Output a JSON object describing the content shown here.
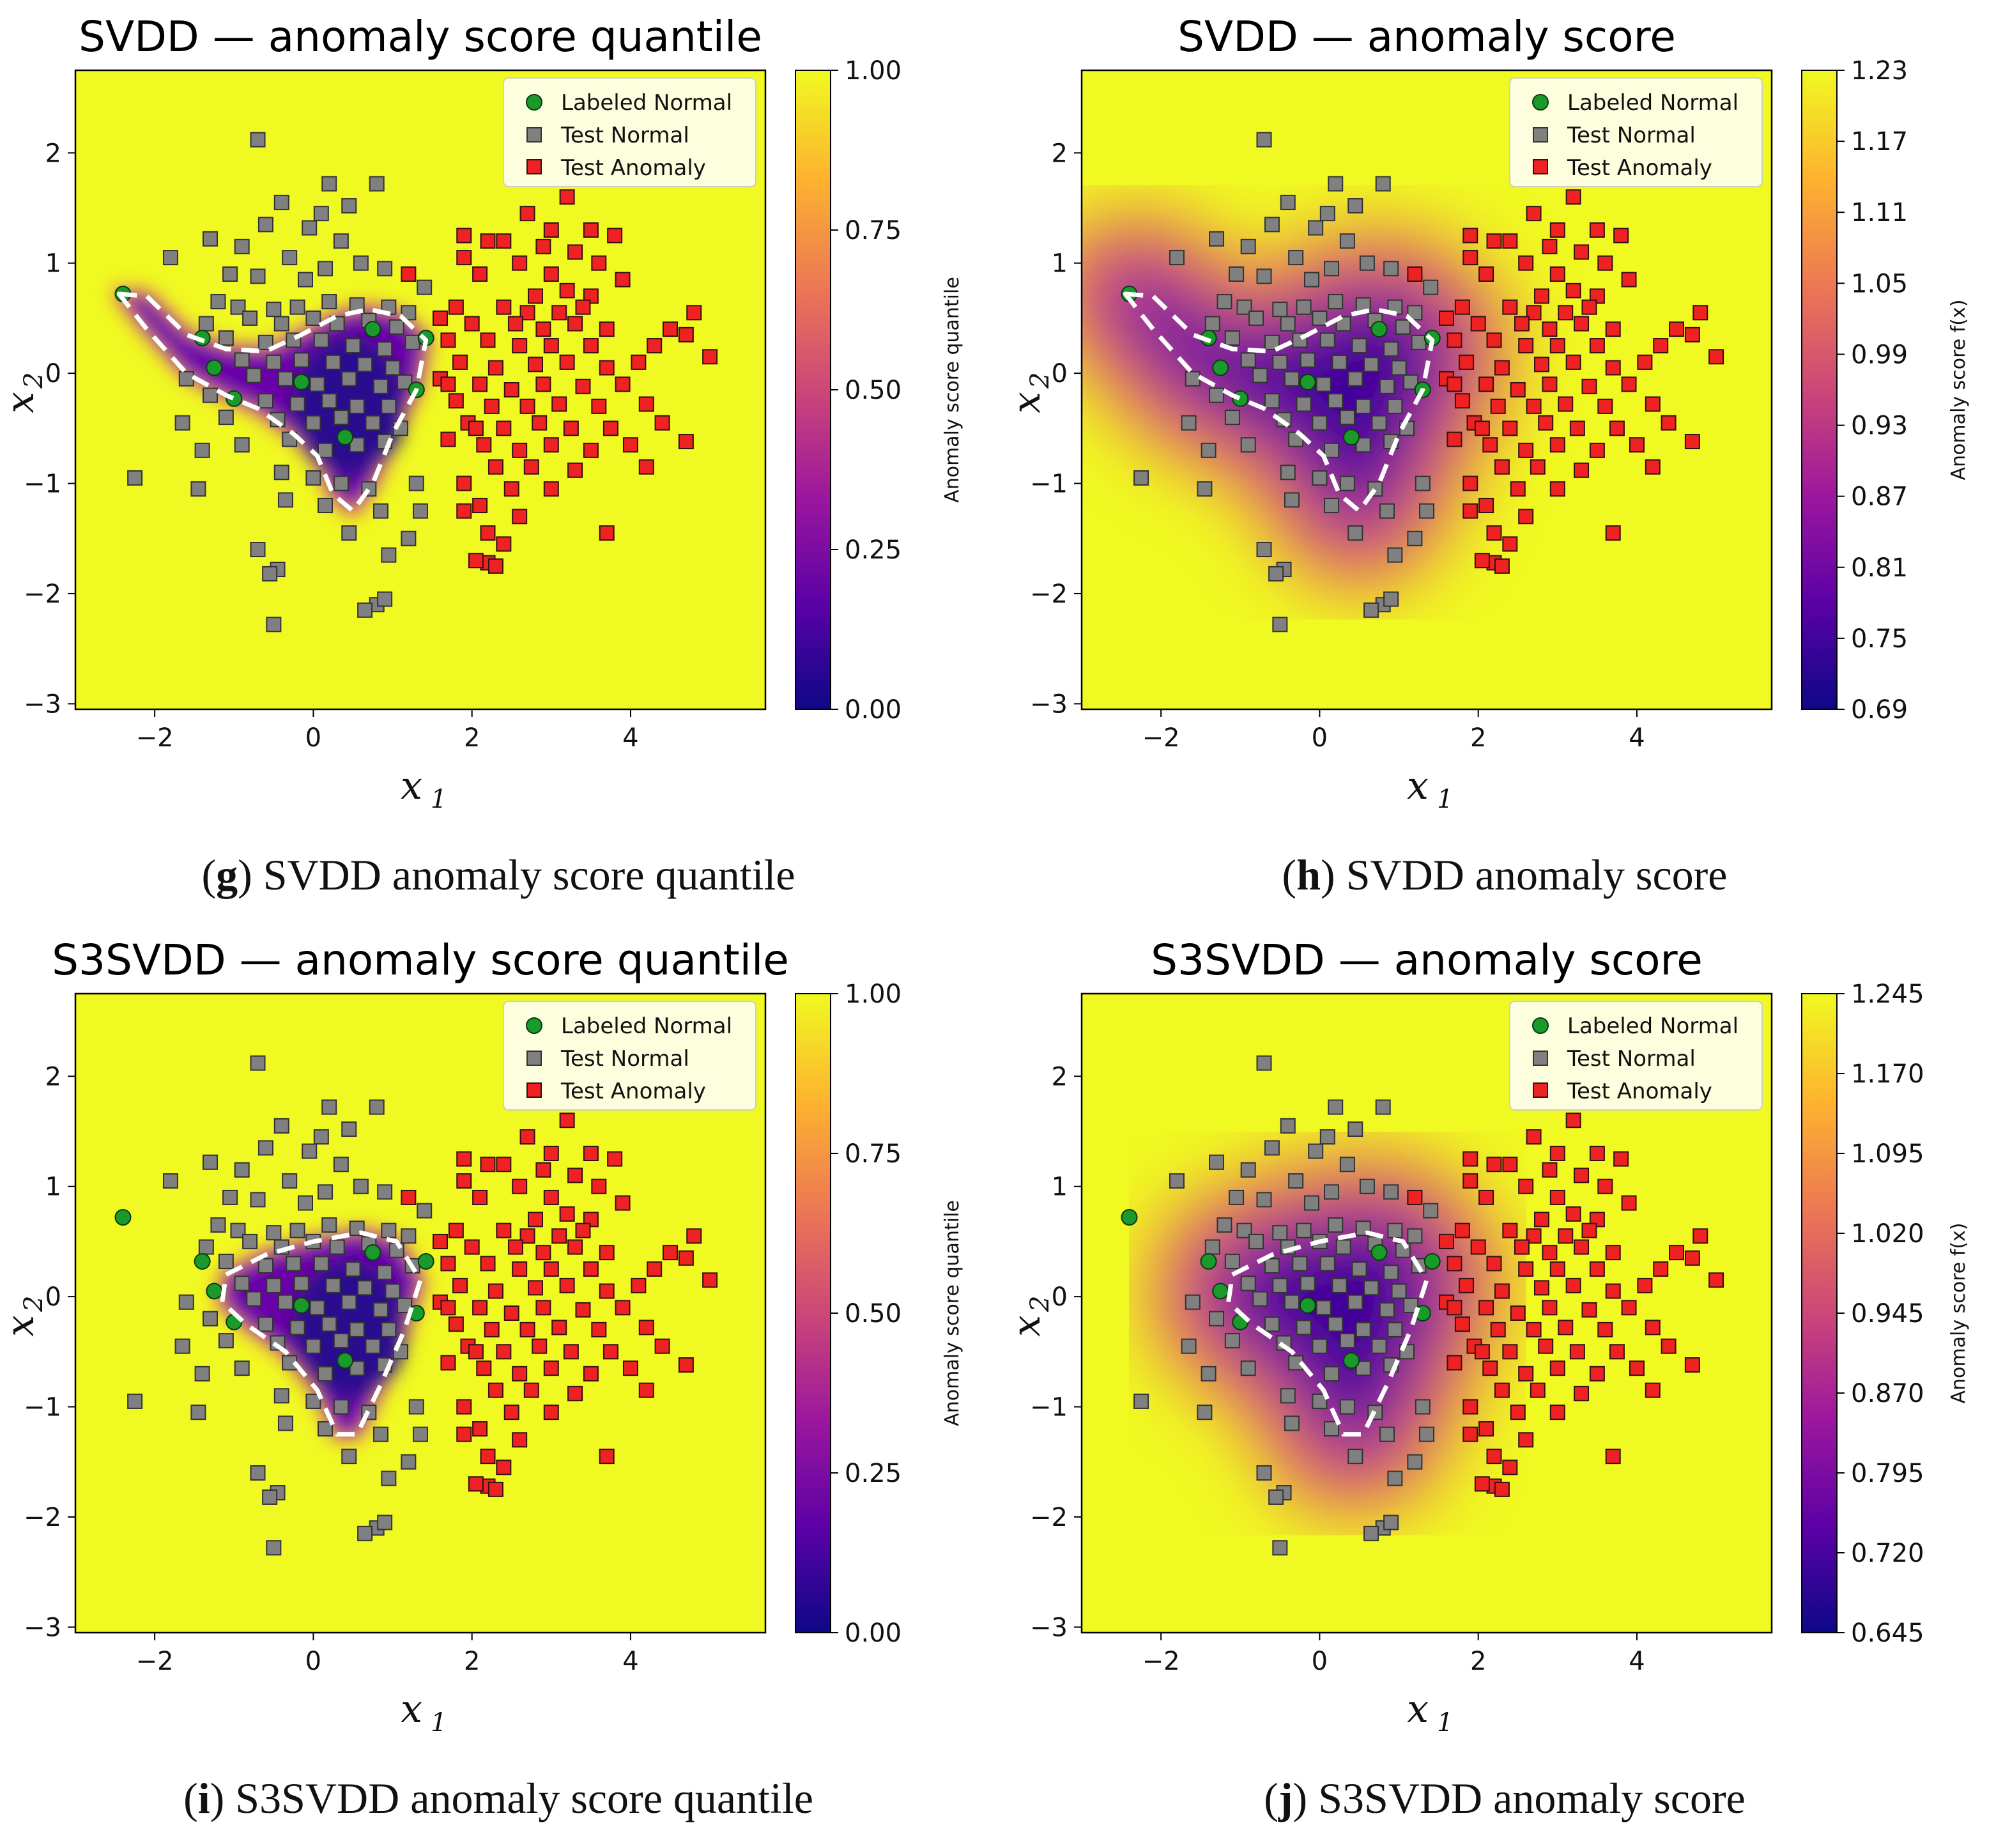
{
  "colors": {
    "background_high": "#f0f921",
    "labeled_normal": "#1a9a2a",
    "test_normal": "#808080",
    "test_anomaly": "#ee2222",
    "boundary": "#ffffff",
    "colormap": [
      "#0d0887",
      "#5c01a6",
      "#9c179e",
      "#cc4778",
      "#ed7953",
      "#fdb42f",
      "#f0f921"
    ]
  },
  "panels": [
    {
      "id": "g",
      "caption_letter": "g",
      "caption_text": " SVDD anomaly score quantile",
      "chart_data": {
        "type": "scatter",
        "title": "SVDD — anomaly score quantile",
        "xlabel": "x",
        "xlabel_sub": "1",
        "ylabel": "x",
        "ylabel_sub": "2",
        "xlim": [
          -3,
          5.7
        ],
        "ylim": [
          -3.05,
          2.75
        ],
        "xticks": [
          {
            "v": -2,
            "t": "−2"
          },
          {
            "v": 0,
            "t": "0"
          },
          {
            "v": 2,
            "t": "2"
          },
          {
            "v": 4,
            "t": "4"
          }
        ],
        "yticks": [
          {
            "v": -3,
            "t": "−3"
          },
          {
            "v": -2,
            "t": "−2"
          },
          {
            "v": -1,
            "t": "−1"
          },
          {
            "v": 0,
            "t": "0"
          },
          {
            "v": 1,
            "t": "1"
          },
          {
            "v": 2,
            "t": "2"
          }
        ],
        "colorbar_label": "Anomaly score quantile",
        "colorbar_ticks": [
          "0.00",
          "0.25",
          "0.50",
          "0.75",
          "1.00"
        ],
        "legend": [
          "Labeled Normal",
          "Test Normal",
          "Test Anomaly"
        ],
        "map": "quantile",
        "model": "svdd"
      }
    },
    {
      "id": "h",
      "caption_letter": "h",
      "caption_text": " SVDD anomaly score",
      "chart_data": {
        "type": "scatter",
        "title": "SVDD — anomaly score",
        "xlabel": "x",
        "xlabel_sub": "1",
        "ylabel": "x",
        "ylabel_sub": "2",
        "xlim": [
          -3,
          5.7
        ],
        "ylim": [
          -3.05,
          2.75
        ],
        "xticks": [
          {
            "v": -2,
            "t": "−2"
          },
          {
            "v": 0,
            "t": "0"
          },
          {
            "v": 2,
            "t": "2"
          },
          {
            "v": 4,
            "t": "4"
          }
        ],
        "yticks": [
          {
            "v": -3,
            "t": "−3"
          },
          {
            "v": -2,
            "t": "−2"
          },
          {
            "v": -1,
            "t": "−1"
          },
          {
            "v": 0,
            "t": "0"
          },
          {
            "v": 1,
            "t": "1"
          },
          {
            "v": 2,
            "t": "2"
          }
        ],
        "colorbar_label": "Anomaly score f(x)",
        "colorbar_ticks": [
          "0.69",
          "0.75",
          "0.81",
          "0.87",
          "0.93",
          "0.99",
          "1.05",
          "1.11",
          "1.17",
          "1.23"
        ],
        "legend": [
          "Labeled Normal",
          "Test Normal",
          "Test Anomaly"
        ],
        "map": "score",
        "model": "svdd"
      }
    },
    {
      "id": "i",
      "caption_letter": "i",
      "caption_text": " S3SVDD anomaly score quantile",
      "chart_data": {
        "type": "scatter",
        "title": "S3SVDD — anomaly score quantile",
        "xlabel": "x",
        "xlabel_sub": "1",
        "ylabel": "x",
        "ylabel_sub": "2",
        "xlim": [
          -3,
          5.7
        ],
        "ylim": [
          -3.05,
          2.75
        ],
        "xticks": [
          {
            "v": -2,
            "t": "−2"
          },
          {
            "v": 0,
            "t": "0"
          },
          {
            "v": 2,
            "t": "2"
          },
          {
            "v": 4,
            "t": "4"
          }
        ],
        "yticks": [
          {
            "v": -3,
            "t": "−3"
          },
          {
            "v": -2,
            "t": "−2"
          },
          {
            "v": -1,
            "t": "−1"
          },
          {
            "v": 0,
            "t": "0"
          },
          {
            "v": 1,
            "t": "1"
          },
          {
            "v": 2,
            "t": "2"
          }
        ],
        "colorbar_label": "Anomaly score quantile",
        "colorbar_ticks": [
          "0.00",
          "0.25",
          "0.50",
          "0.75",
          "1.00"
        ],
        "legend": [
          "Labeled Normal",
          "Test Normal",
          "Test Anomaly"
        ],
        "map": "quantile",
        "model": "s3svdd"
      }
    },
    {
      "id": "j",
      "caption_letter": "j",
      "caption_text": " S3SVDD anomaly score",
      "chart_data": {
        "type": "scatter",
        "title": "S3SVDD — anomaly score",
        "xlabel": "x",
        "xlabel_sub": "1",
        "ylabel": "x",
        "ylabel_sub": "2",
        "xlim": [
          -3,
          5.7
        ],
        "ylim": [
          -3.05,
          2.75
        ],
        "xticks": [
          {
            "v": -2,
            "t": "−2"
          },
          {
            "v": 0,
            "t": "0"
          },
          {
            "v": 2,
            "t": "2"
          },
          {
            "v": 4,
            "t": "4"
          }
        ],
        "yticks": [
          {
            "v": -3,
            "t": "−3"
          },
          {
            "v": -2,
            "t": "−2"
          },
          {
            "v": -1,
            "t": "−1"
          },
          {
            "v": 0,
            "t": "0"
          },
          {
            "v": 1,
            "t": "1"
          },
          {
            "v": 2,
            "t": "2"
          }
        ],
        "colorbar_label": "Anomaly score f(x)",
        "colorbar_ticks": [
          "0.645",
          "0.720",
          "0.795",
          "0.870",
          "0.945",
          "1.020",
          "1.095",
          "1.170",
          "1.245"
        ],
        "legend": [
          "Labeled Normal",
          "Test Normal",
          "Test Anomaly"
        ],
        "map": "score",
        "model": "s3svdd"
      }
    }
  ],
  "data_points": {
    "labeled_normal": [
      [
        -2.4,
        0.72
      ],
      [
        -1.4,
        0.32
      ],
      [
        -1.25,
        0.05
      ],
      [
        -1.0,
        -0.23
      ],
      [
        -0.15,
        -0.08
      ],
      [
        0.4,
        -0.58
      ],
      [
        0.75,
        0.4
      ],
      [
        1.3,
        -0.15
      ],
      [
        1.42,
        0.32
      ]
    ],
    "test_normal": [
      [
        -0.7,
        2.12
      ],
      [
        0.2,
        1.72
      ],
      [
        0.8,
        1.72
      ],
      [
        -0.4,
        1.55
      ],
      [
        0.1,
        1.45
      ],
      [
        0.45,
        1.52
      ],
      [
        -0.6,
        1.35
      ],
      [
        -0.05,
        1.32
      ],
      [
        0.35,
        1.2
      ],
      [
        -1.3,
        1.22
      ],
      [
        -0.9,
        1.15
      ],
      [
        -1.8,
        1.05
      ],
      [
        -0.3,
        1.05
      ],
      [
        0.6,
        1.0
      ],
      [
        -1.05,
        0.9
      ],
      [
        0.15,
        0.95
      ],
      [
        -0.7,
        0.88
      ],
      [
        -0.1,
        0.85
      ],
      [
        0.9,
        0.95
      ],
      [
        1.4,
        0.78
      ],
      [
        -1.2,
        0.65
      ],
      [
        -0.95,
        0.6
      ],
      [
        -0.5,
        0.58
      ],
      [
        -0.2,
        0.6
      ],
      [
        0.2,
        0.65
      ],
      [
        0.55,
        0.62
      ],
      [
        0.95,
        0.6
      ],
      [
        1.2,
        0.55
      ],
      [
        -1.35,
        0.45
      ],
      [
        -0.8,
        0.5
      ],
      [
        -0.4,
        0.45
      ],
      [
        0.0,
        0.5
      ],
      [
        0.3,
        0.45
      ],
      [
        0.7,
        0.48
      ],
      [
        1.05,
        0.42
      ],
      [
        -1.1,
        0.32
      ],
      [
        -0.6,
        0.28
      ],
      [
        -0.25,
        0.3
      ],
      [
        0.1,
        0.3
      ],
      [
        0.5,
        0.25
      ],
      [
        0.9,
        0.22
      ],
      [
        1.25,
        0.28
      ],
      [
        -0.9,
        0.12
      ],
      [
        -0.5,
        0.1
      ],
      [
        -0.15,
        0.12
      ],
      [
        0.25,
        0.1
      ],
      [
        0.65,
        0.08
      ],
      [
        1.0,
        0.05
      ],
      [
        -1.6,
        -0.05
      ],
      [
        -0.75,
        -0.02
      ],
      [
        -0.35,
        -0.05
      ],
      [
        0.05,
        -0.1
      ],
      [
        0.45,
        -0.05
      ],
      [
        0.85,
        -0.12
      ],
      [
        1.15,
        -0.08
      ],
      [
        -1.3,
        -0.2
      ],
      [
        -0.6,
        -0.25
      ],
      [
        -0.2,
        -0.28
      ],
      [
        0.2,
        -0.25
      ],
      [
        0.55,
        -0.3
      ],
      [
        0.95,
        -0.3
      ],
      [
        -1.65,
        -0.45
      ],
      [
        -1.1,
        -0.4
      ],
      [
        -0.45,
        -0.42
      ],
      [
        0.0,
        -0.45
      ],
      [
        0.35,
        -0.4
      ],
      [
        0.75,
        -0.45
      ],
      [
        1.1,
        -0.5
      ],
      [
        -1.4,
        -0.7
      ],
      [
        -0.9,
        -0.65
      ],
      [
        -0.3,
        -0.6
      ],
      [
        0.15,
        -0.7
      ],
      [
        0.55,
        -0.65
      ],
      [
        0.9,
        -0.62
      ],
      [
        -2.25,
        -0.95
      ],
      [
        -1.45,
        -1.05
      ],
      [
        -0.4,
        -0.9
      ],
      [
        0.0,
        -0.95
      ],
      [
        0.35,
        -1.0
      ],
      [
        0.7,
        -1.05
      ],
      [
        1.3,
        -1.0
      ],
      [
        -0.35,
        -1.15
      ],
      [
        0.15,
        -1.2
      ],
      [
        0.85,
        -1.25
      ],
      [
        1.35,
        -1.25
      ],
      [
        0.45,
        -1.45
      ],
      [
        -0.7,
        -1.6
      ],
      [
        -0.45,
        -1.78
      ],
      [
        -0.55,
        -1.82
      ],
      [
        0.95,
        -1.65
      ],
      [
        1.2,
        -1.5
      ],
      [
        0.8,
        -2.1
      ],
      [
        0.65,
        -2.15
      ],
      [
        0.9,
        -2.05
      ],
      [
        -0.5,
        -2.28
      ]
    ],
    "test_anomaly": [
      [
        3.2,
        1.6
      ],
      [
        2.7,
        1.45
      ],
      [
        3.0,
        1.3
      ],
      [
        2.2,
        1.2
      ],
      [
        2.4,
        1.2
      ],
      [
        3.5,
        1.3
      ],
      [
        3.8,
        1.25
      ],
      [
        2.9,
        1.15
      ],
      [
        3.3,
        1.1
      ],
      [
        1.9,
        1.05
      ],
      [
        2.6,
        1.0
      ],
      [
        3.6,
        1.0
      ],
      [
        2.1,
        0.9
      ],
      [
        3.0,
        0.9
      ],
      [
        3.9,
        0.85
      ],
      [
        2.8,
        0.7
      ],
      [
        3.2,
        0.75
      ],
      [
        3.5,
        0.7
      ],
      [
        2.4,
        0.6
      ],
      [
        2.7,
        0.55
      ],
      [
        3.1,
        0.55
      ],
      [
        3.4,
        0.6
      ],
      [
        4.8,
        0.55
      ],
      [
        2.0,
        0.45
      ],
      [
        2.55,
        0.45
      ],
      [
        2.9,
        0.4
      ],
      [
        3.3,
        0.45
      ],
      [
        3.7,
        0.4
      ],
      [
        4.5,
        0.4
      ],
      [
        4.7,
        0.35
      ],
      [
        1.7,
        0.3
      ],
      [
        2.2,
        0.3
      ],
      [
        2.6,
        0.25
      ],
      [
        3.0,
        0.25
      ],
      [
        3.5,
        0.25
      ],
      [
        4.3,
        0.25
      ],
      [
        5.0,
        0.15
      ],
      [
        1.85,
        0.1
      ],
      [
        2.3,
        0.05
      ],
      [
        2.8,
        0.08
      ],
      [
        3.2,
        0.1
      ],
      [
        3.7,
        0.05
      ],
      [
        4.1,
        0.1
      ],
      [
        1.6,
        -0.05
      ],
      [
        2.1,
        -0.1
      ],
      [
        2.5,
        -0.15
      ],
      [
        2.9,
        -0.1
      ],
      [
        3.4,
        -0.12
      ],
      [
        3.9,
        -0.1
      ],
      [
        1.8,
        -0.25
      ],
      [
        2.25,
        -0.3
      ],
      [
        2.7,
        -0.3
      ],
      [
        3.1,
        -0.28
      ],
      [
        3.6,
        -0.3
      ],
      [
        4.2,
        -0.28
      ],
      [
        1.95,
        -0.45
      ],
      [
        2.4,
        -0.5
      ],
      [
        2.85,
        -0.45
      ],
      [
        3.25,
        -0.5
      ],
      [
        3.75,
        -0.5
      ],
      [
        4.4,
        -0.45
      ],
      [
        1.7,
        -0.6
      ],
      [
        2.15,
        -0.65
      ],
      [
        2.6,
        -0.7
      ],
      [
        3.0,
        -0.65
      ],
      [
        3.5,
        -0.7
      ],
      [
        4.0,
        -0.65
      ],
      [
        4.7,
        -0.62
      ],
      [
        2.3,
        -0.85
      ],
      [
        2.75,
        -0.85
      ],
      [
        3.3,
        -0.88
      ],
      [
        4.2,
        -0.85
      ],
      [
        1.9,
        -1.0
      ],
      [
        2.5,
        -1.05
      ],
      [
        3.0,
        -1.05
      ],
      [
        2.1,
        -1.2
      ],
      [
        1.9,
        -1.25
      ],
      [
        2.6,
        -1.3
      ],
      [
        2.2,
        -1.45
      ],
      [
        3.7,
        -1.45
      ],
      [
        2.4,
        -1.55
      ],
      [
        2.2,
        -1.72
      ],
      [
        2.05,
        -1.7
      ],
      [
        2.3,
        -1.75
      ],
      [
        1.2,
        0.9
      ],
      [
        1.6,
        0.5
      ],
      [
        1.7,
        -0.1
      ],
      [
        1.8,
        0.6
      ],
      [
        2.05,
        -0.5
      ],
      [
        1.9,
        1.25
      ]
    ]
  },
  "boundaries": {
    "svdd": [
      [
        -2.45,
        0.72
      ],
      [
        -2.1,
        0.7
      ],
      [
        -1.6,
        0.35
      ],
      [
        -1.1,
        0.22
      ],
      [
        -0.6,
        0.2
      ],
      [
        -0.15,
        0.35
      ],
      [
        0.3,
        0.52
      ],
      [
        0.7,
        0.58
      ],
      [
        1.1,
        0.52
      ],
      [
        1.42,
        0.3
      ],
      [
        1.3,
        -0.15
      ],
      [
        1.0,
        -0.55
      ],
      [
        0.75,
        -1.0
      ],
      [
        0.5,
        -1.25
      ],
      [
        0.25,
        -1.1
      ],
      [
        0.05,
        -0.75
      ],
      [
        -0.25,
        -0.55
      ],
      [
        -0.7,
        -0.32
      ],
      [
        -1.1,
        -0.2
      ],
      [
        -1.6,
        0.0
      ],
      [
        -2.1,
        0.4
      ],
      [
        -2.45,
        0.72
      ]
    ],
    "s3svdd": [
      [
        -1.1,
        0.2
      ],
      [
        -0.6,
        0.38
      ],
      [
        0.0,
        0.5
      ],
      [
        0.6,
        0.58
      ],
      [
        1.05,
        0.5
      ],
      [
        1.35,
        0.15
      ],
      [
        1.15,
        -0.3
      ],
      [
        0.85,
        -0.8
      ],
      [
        0.55,
        -1.25
      ],
      [
        0.3,
        -1.25
      ],
      [
        0.05,
        -0.85
      ],
      [
        -0.35,
        -0.5
      ],
      [
        -0.85,
        -0.25
      ],
      [
        -1.15,
        -0.05
      ],
      [
        -1.1,
        0.2
      ]
    ]
  }
}
